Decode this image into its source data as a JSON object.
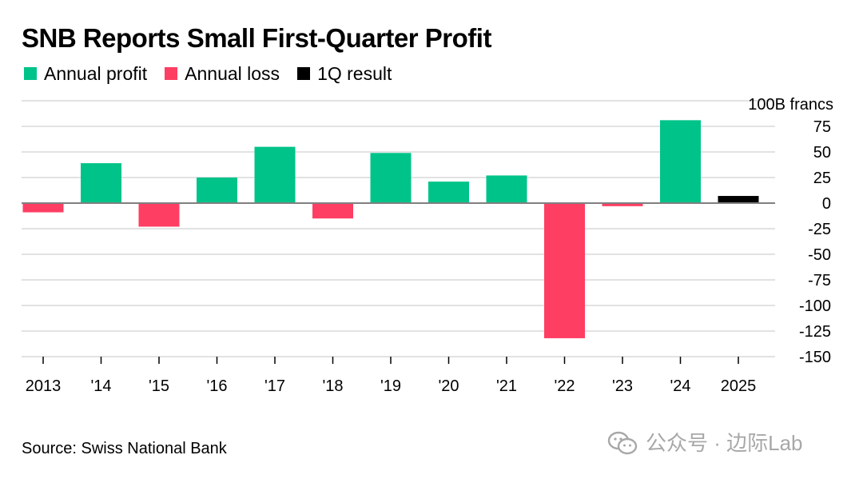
{
  "chart_data": {
    "type": "bar",
    "title": "SNB Reports Small First-Quarter Profit",
    "y_unit_label": "100B francs",
    "categories": [
      "2013",
      "'14",
      "'15",
      "'16",
      "'17",
      "'18",
      "'19",
      "'20",
      "'21",
      "'22",
      "'23",
      "'24",
      "2025"
    ],
    "values": [
      -9,
      39,
      -23,
      25,
      55,
      -15,
      49,
      21,
      27,
      -132,
      -3,
      81,
      7
    ],
    "kinds": [
      "loss",
      "profit",
      "loss",
      "profit",
      "profit",
      "loss",
      "profit",
      "profit",
      "profit",
      "loss",
      "loss",
      "profit",
      "q1"
    ],
    "ylim": [
      -150,
      100
    ],
    "yticks": [
      -150,
      -125,
      -100,
      -75,
      -50,
      -25,
      0,
      25,
      50,
      75,
      100
    ],
    "ytick_labels": [
      "-150",
      "-125",
      "-100",
      "-75",
      "-50",
      "-25",
      "0",
      "25",
      "50",
      "75",
      ""
    ],
    "grid": true,
    "legend_position": "top-left",
    "legend": [
      {
        "key": "profit",
        "label": "Annual profit",
        "color": "#00c389"
      },
      {
        "key": "loss",
        "label": "Annual loss",
        "color": "#ff3e63"
      },
      {
        "key": "q1",
        "label": "1Q result",
        "color": "#000000"
      }
    ],
    "source": "Source: Swiss National Bank"
  },
  "watermark": {
    "text": "公众号 · 边际Lab",
    "icon": "wechat-icon"
  }
}
